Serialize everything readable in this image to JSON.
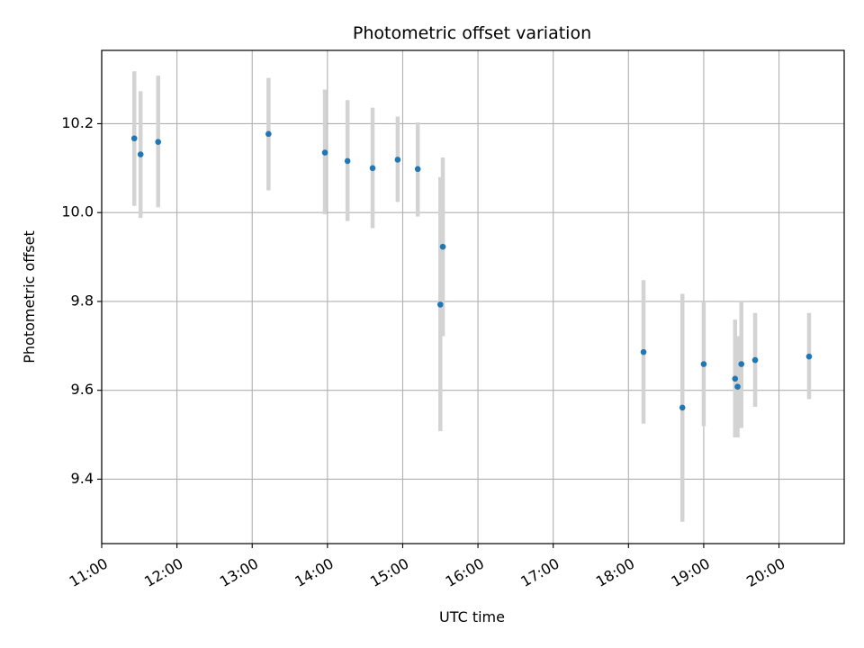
{
  "chart_data": {
    "type": "scatter",
    "title": "Photometric offset variation",
    "xlabel": "UTC time",
    "ylabel": "Photometric offset",
    "x_tick_labels": [
      "11:00",
      "12:00",
      "13:00",
      "14:00",
      "15:00",
      "16:00",
      "17:00",
      "18:00",
      "19:00",
      "20:00"
    ],
    "y_tick_labels": [
      "9.4",
      "9.6",
      "9.8",
      "10.0",
      "10.2"
    ],
    "y_ticks": [
      9.4,
      9.6,
      9.8,
      10.0,
      10.2
    ],
    "xlim": [
      "11:00",
      "20:52"
    ],
    "ylim": [
      9.255,
      10.365
    ],
    "grid": true,
    "x_tick_rotation": 30,
    "colors": {
      "point": "#1f77b4",
      "errorbar": "#d3d3d3",
      "grid": "#b0b0b0",
      "axis": "#000000"
    },
    "points": [
      {
        "x": "11:26",
        "y": 10.167,
        "y_low": 10.015,
        "y_high": 10.318
      },
      {
        "x": "11:31",
        "y": 10.131,
        "y_low": 9.988,
        "y_high": 10.273
      },
      {
        "x": "11:45",
        "y": 10.159,
        "y_low": 10.012,
        "y_high": 10.308
      },
      {
        "x": "13:13",
        "y": 10.177,
        "y_low": 10.05,
        "y_high": 10.303
      },
      {
        "x": "13:58",
        "y": 10.135,
        "y_low": 9.996,
        "y_high": 10.277
      },
      {
        "x": "14:16",
        "y": 10.116,
        "y_low": 9.981,
        "y_high": 10.253
      },
      {
        "x": "14:36",
        "y": 10.1,
        "y_low": 9.965,
        "y_high": 10.236
      },
      {
        "x": "14:56",
        "y": 10.119,
        "y_low": 10.024,
        "y_high": 10.216
      },
      {
        "x": "15:12",
        "y": 10.098,
        "y_low": 9.991,
        "y_high": 10.203
      },
      {
        "x": "15:30",
        "y": 9.793,
        "y_low": 9.508,
        "y_high": 10.08
      },
      {
        "x": "15:32",
        "y": 9.923,
        "y_low": 9.722,
        "y_high": 10.124
      },
      {
        "x": "18:12",
        "y": 9.686,
        "y_low": 9.525,
        "y_high": 9.848
      },
      {
        "x": "18:43",
        "y": 9.561,
        "y_low": 9.304,
        "y_high": 9.817
      },
      {
        "x": "19:00",
        "y": 9.659,
        "y_low": 9.519,
        "y_high": 9.8
      },
      {
        "x": "19:25",
        "y": 9.626,
        "y_low": 9.494,
        "y_high": 9.759
      },
      {
        "x": "19:27",
        "y": 9.608,
        "y_low": 9.494,
        "y_high": 9.722
      },
      {
        "x": "19:30",
        "y": 9.659,
        "y_low": 9.515,
        "y_high": 9.8
      },
      {
        "x": "19:41",
        "y": 9.668,
        "y_low": 9.563,
        "y_high": 9.774
      },
      {
        "x": "20:24",
        "y": 9.676,
        "y_low": 9.58,
        "y_high": 9.774
      }
    ]
  }
}
